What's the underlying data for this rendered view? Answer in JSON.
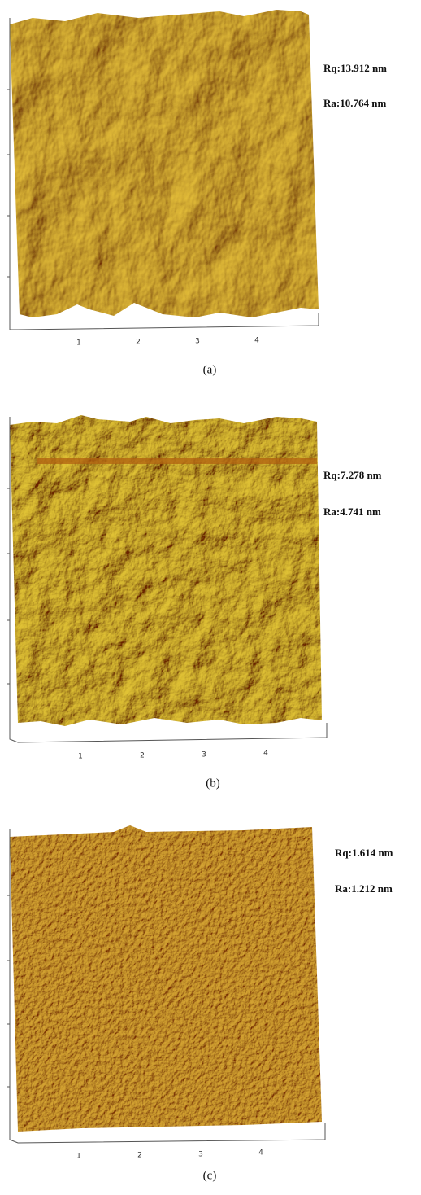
{
  "panels": [
    {
      "rq": "Rq:13.912 nm",
      "ra": "Ra:10.764 nm",
      "x_ticks": [
        "1",
        "2",
        "3",
        "4"
      ],
      "caption": "(a)"
    },
    {
      "rq": "Rq:7.278 nm",
      "ra": "Ra:4.741 nm",
      "x_ticks": [
        "1",
        "2",
        "3",
        "4"
      ],
      "caption": "(b)"
    },
    {
      "rq": "Rq:1.614 nm",
      "ra": "Ra:1.212 nm",
      "x_ticks": [
        "1",
        "2",
        "3",
        "4"
      ],
      "caption": "(c)"
    }
  ]
}
